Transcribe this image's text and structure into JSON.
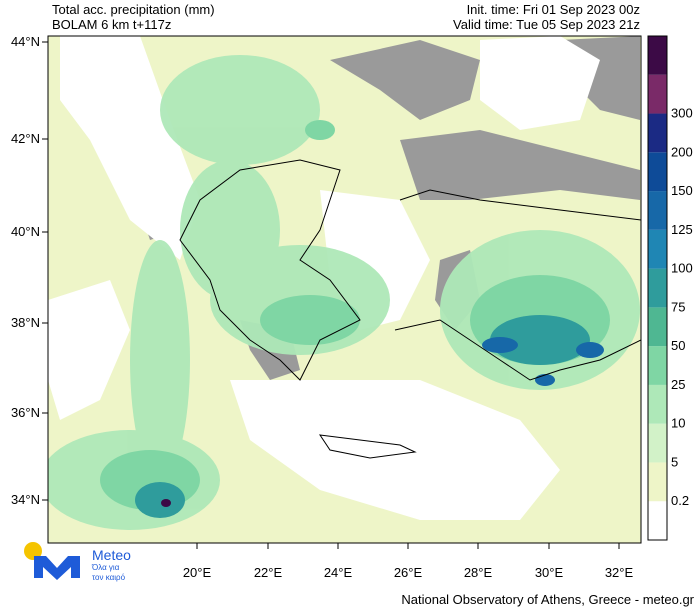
{
  "header": {
    "title": "Total acc. precipitation (mm)",
    "model": "BOLAM 6 km t+117z",
    "init_time": "Init. time: Fri 01 Sep 2023 00z",
    "valid_time": "Valid time: Tue 05 Sep 2023 21z"
  },
  "map": {
    "lat_labels": [
      "44°N",
      "42°N",
      "40°N",
      "38°N",
      "36°N",
      "34°N"
    ],
    "lon_labels": [
      "20°E",
      "22°E",
      "24°E",
      "26°E",
      "28°E",
      "30°E",
      "32°E"
    ]
  },
  "colorbar": {
    "labels": [
      "0.2",
      "5",
      "10",
      "25",
      "50",
      "75",
      "100",
      "125",
      "150",
      "200",
      "300"
    ],
    "colors": [
      "#ffffff",
      "#eef5c8",
      "#d2f2c8",
      "#aee8b8",
      "#7fd6a4",
      "#4fb792",
      "#2f9c9c",
      "#1f86b4",
      "#1768a8",
      "#0e4b98",
      "#1b2a84",
      "#7a2a68",
      "#3c0a46"
    ]
  },
  "logo": {
    "name": "Meteo",
    "tagline_1": "Όλα για",
    "tagline_2": "τον καιρό"
  },
  "footer": "National Observatory of Athens, Greece - meteo.gr"
}
